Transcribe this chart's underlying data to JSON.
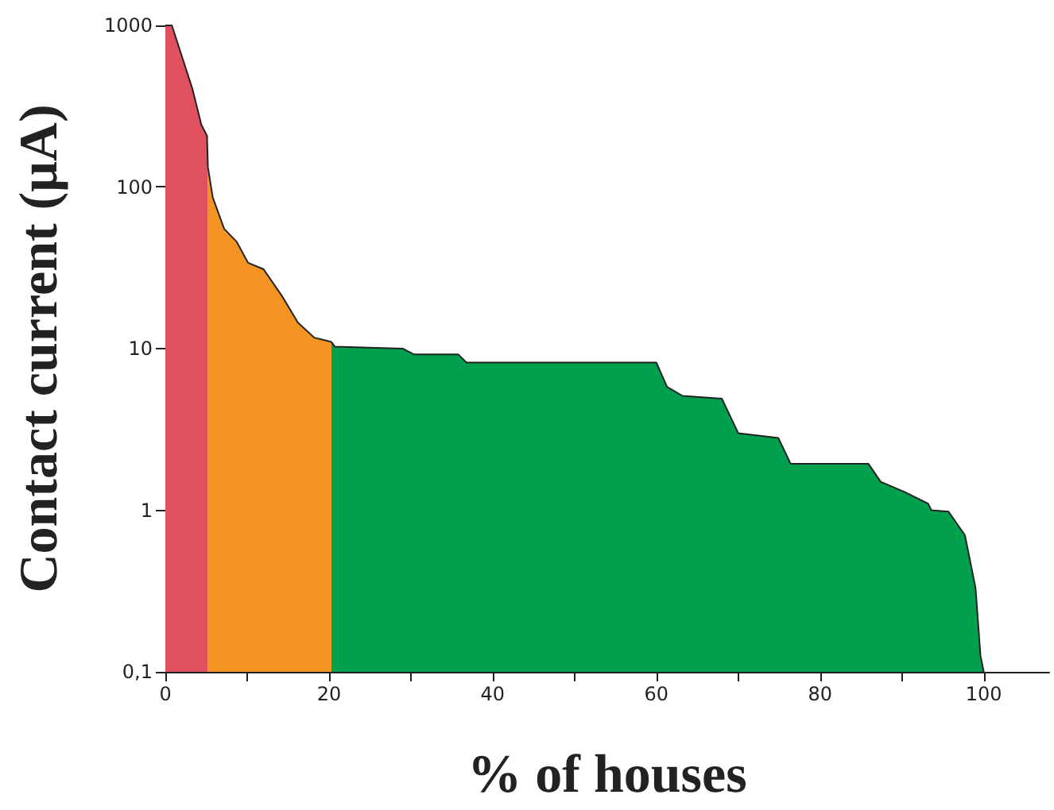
{
  "chart_data": {
    "type": "area",
    "xlabel": "% of houses",
    "ylabel": "Contact current (μA)",
    "log": "y",
    "marker": "none",
    "xlim": [
      0,
      108
    ],
    "xticks": [
      0,
      {
        "value": 10,
        "label": null
      },
      20,
      {
        "value": 30,
        "label": null
      },
      40,
      {
        "value": 50,
        "label": null
      },
      60,
      {
        "value": 70,
        "label": null
      },
      80,
      {
        "value": 90,
        "label": null
      },
      100
    ],
    "ylim": [
      0.1,
      1000
    ],
    "yticks": [
      {
        "value": 0.1,
        "label": "0,1"
      },
      1,
      10,
      100,
      1000
    ],
    "series": [
      {
        "color": "#e0505f",
        "x": [
          0,
          0.8,
          3.3,
          4.4,
          5.1,
          5.2
        ],
        "values": [
          1000,
          1000,
          407,
          243,
          207,
          133
        ]
      },
      {
        "color": "#f39323",
        "x": [
          5.2,
          5.8,
          7.2,
          8.7,
          10.1,
          12,
          14.3,
          16.2,
          18.2,
          20.3
        ],
        "values": [
          133,
          86,
          55,
          46,
          34,
          31,
          21,
          14.5,
          11.7,
          11
        ]
      },
      {
        "color": "#00a04e",
        "x": [
          20.3,
          20.7,
          29,
          30.4,
          35.8,
          36.8,
          60,
          61.3,
          63.2,
          68,
          70,
          74.9,
          76.4,
          85.9,
          87.4,
          90.3,
          93.2,
          93.6,
          95.7,
          97.7,
          99,
          99.6,
          100
        ],
        "values": [
          11,
          10.3,
          10,
          9.2,
          9.2,
          8.2,
          8.2,
          5.8,
          5.1,
          4.9,
          3,
          2.8,
          1.94,
          1.94,
          1.5,
          1.3,
          1.1,
          1,
          0.98,
          0.7,
          0.33,
          0.126,
          0.1
        ]
      }
    ]
  }
}
